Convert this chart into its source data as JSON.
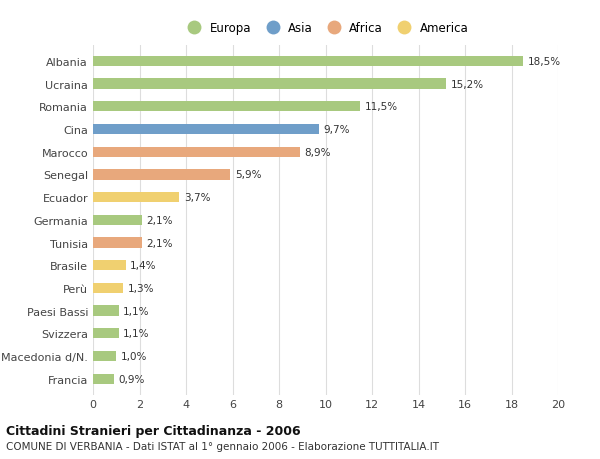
{
  "categories": [
    "Albania",
    "Ucraina",
    "Romania",
    "Cina",
    "Marocco",
    "Senegal",
    "Ecuador",
    "Germania",
    "Tunisia",
    "Brasile",
    "Perù",
    "Paesi Bassi",
    "Svizzera",
    "Macedonia d/N.",
    "Francia"
  ],
  "values": [
    18.5,
    15.2,
    11.5,
    9.7,
    8.9,
    5.9,
    3.7,
    2.1,
    2.1,
    1.4,
    1.3,
    1.1,
    1.1,
    1.0,
    0.9
  ],
  "continents": [
    "Europa",
    "Europa",
    "Europa",
    "Asia",
    "Africa",
    "Africa",
    "America",
    "Europa",
    "Africa",
    "America",
    "America",
    "Europa",
    "Europa",
    "Europa",
    "Europa"
  ],
  "colors": {
    "Europa": "#a8c97f",
    "Asia": "#6f9ec9",
    "Africa": "#e8a87c",
    "America": "#f0d070"
  },
  "legend_order": [
    "Europa",
    "Asia",
    "Africa",
    "America"
  ],
  "xlim": [
    0,
    20
  ],
  "xticks": [
    0,
    2,
    4,
    6,
    8,
    10,
    12,
    14,
    16,
    18,
    20
  ],
  "title": "Cittadini Stranieri per Cittadinanza - 2006",
  "subtitle": "COMUNE DI VERBANIA - Dati ISTAT al 1° gennaio 2006 - Elaborazione TUTTITALIA.IT",
  "bg_color": "#ffffff",
  "grid_color": "#dddddd",
  "bar_height": 0.45
}
